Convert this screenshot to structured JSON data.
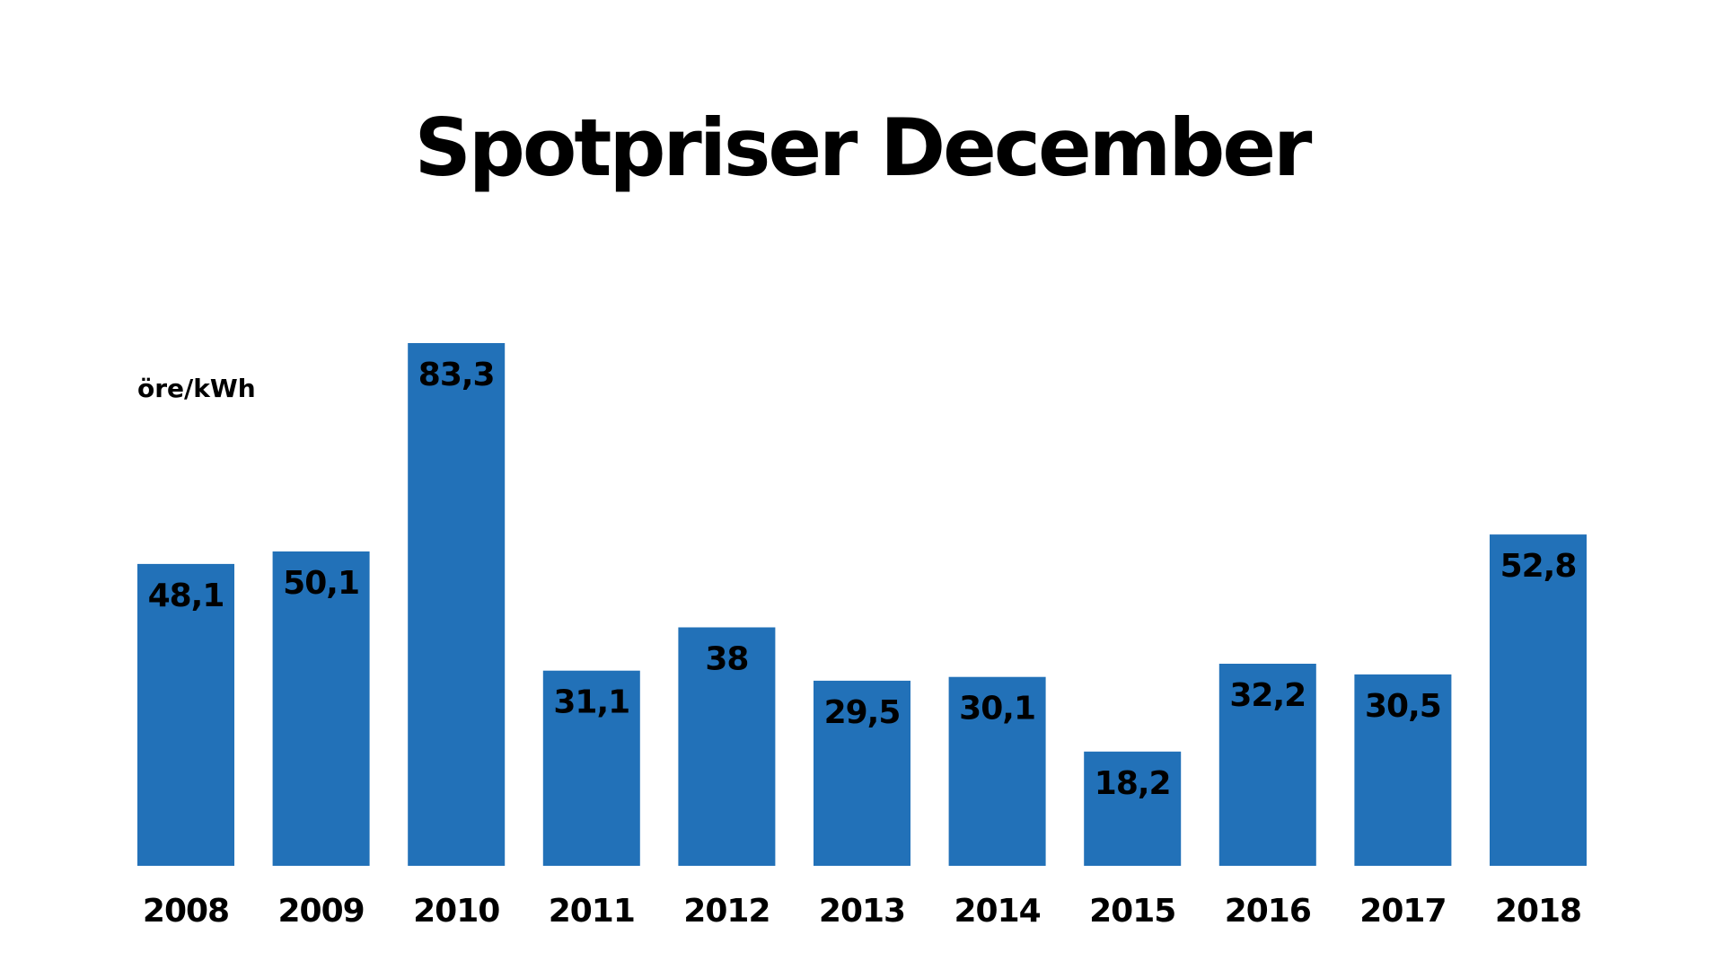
{
  "chart_data": {
    "type": "bar",
    "title": "Spotpriser December",
    "unit_label": "öre/kWh",
    "categories": [
      "2008",
      "2009",
      "2010",
      "2011",
      "2012",
      "2013",
      "2014",
      "2015",
      "2016",
      "2017",
      "2018"
    ],
    "values": [
      48.1,
      50.1,
      83.3,
      31.1,
      38,
      29.5,
      30.1,
      18.2,
      32.2,
      30.5,
      52.8
    ],
    "value_labels": [
      "48,1",
      "50,1",
      "83,3",
      "31,1",
      "38",
      "29,5",
      "30,1",
      "18,2",
      "32,2",
      "30,5",
      "52,8"
    ],
    "ylim": [
      0,
      83.3
    ],
    "bar_color": "#2271b8",
    "grid": false,
    "legend": "none"
  }
}
